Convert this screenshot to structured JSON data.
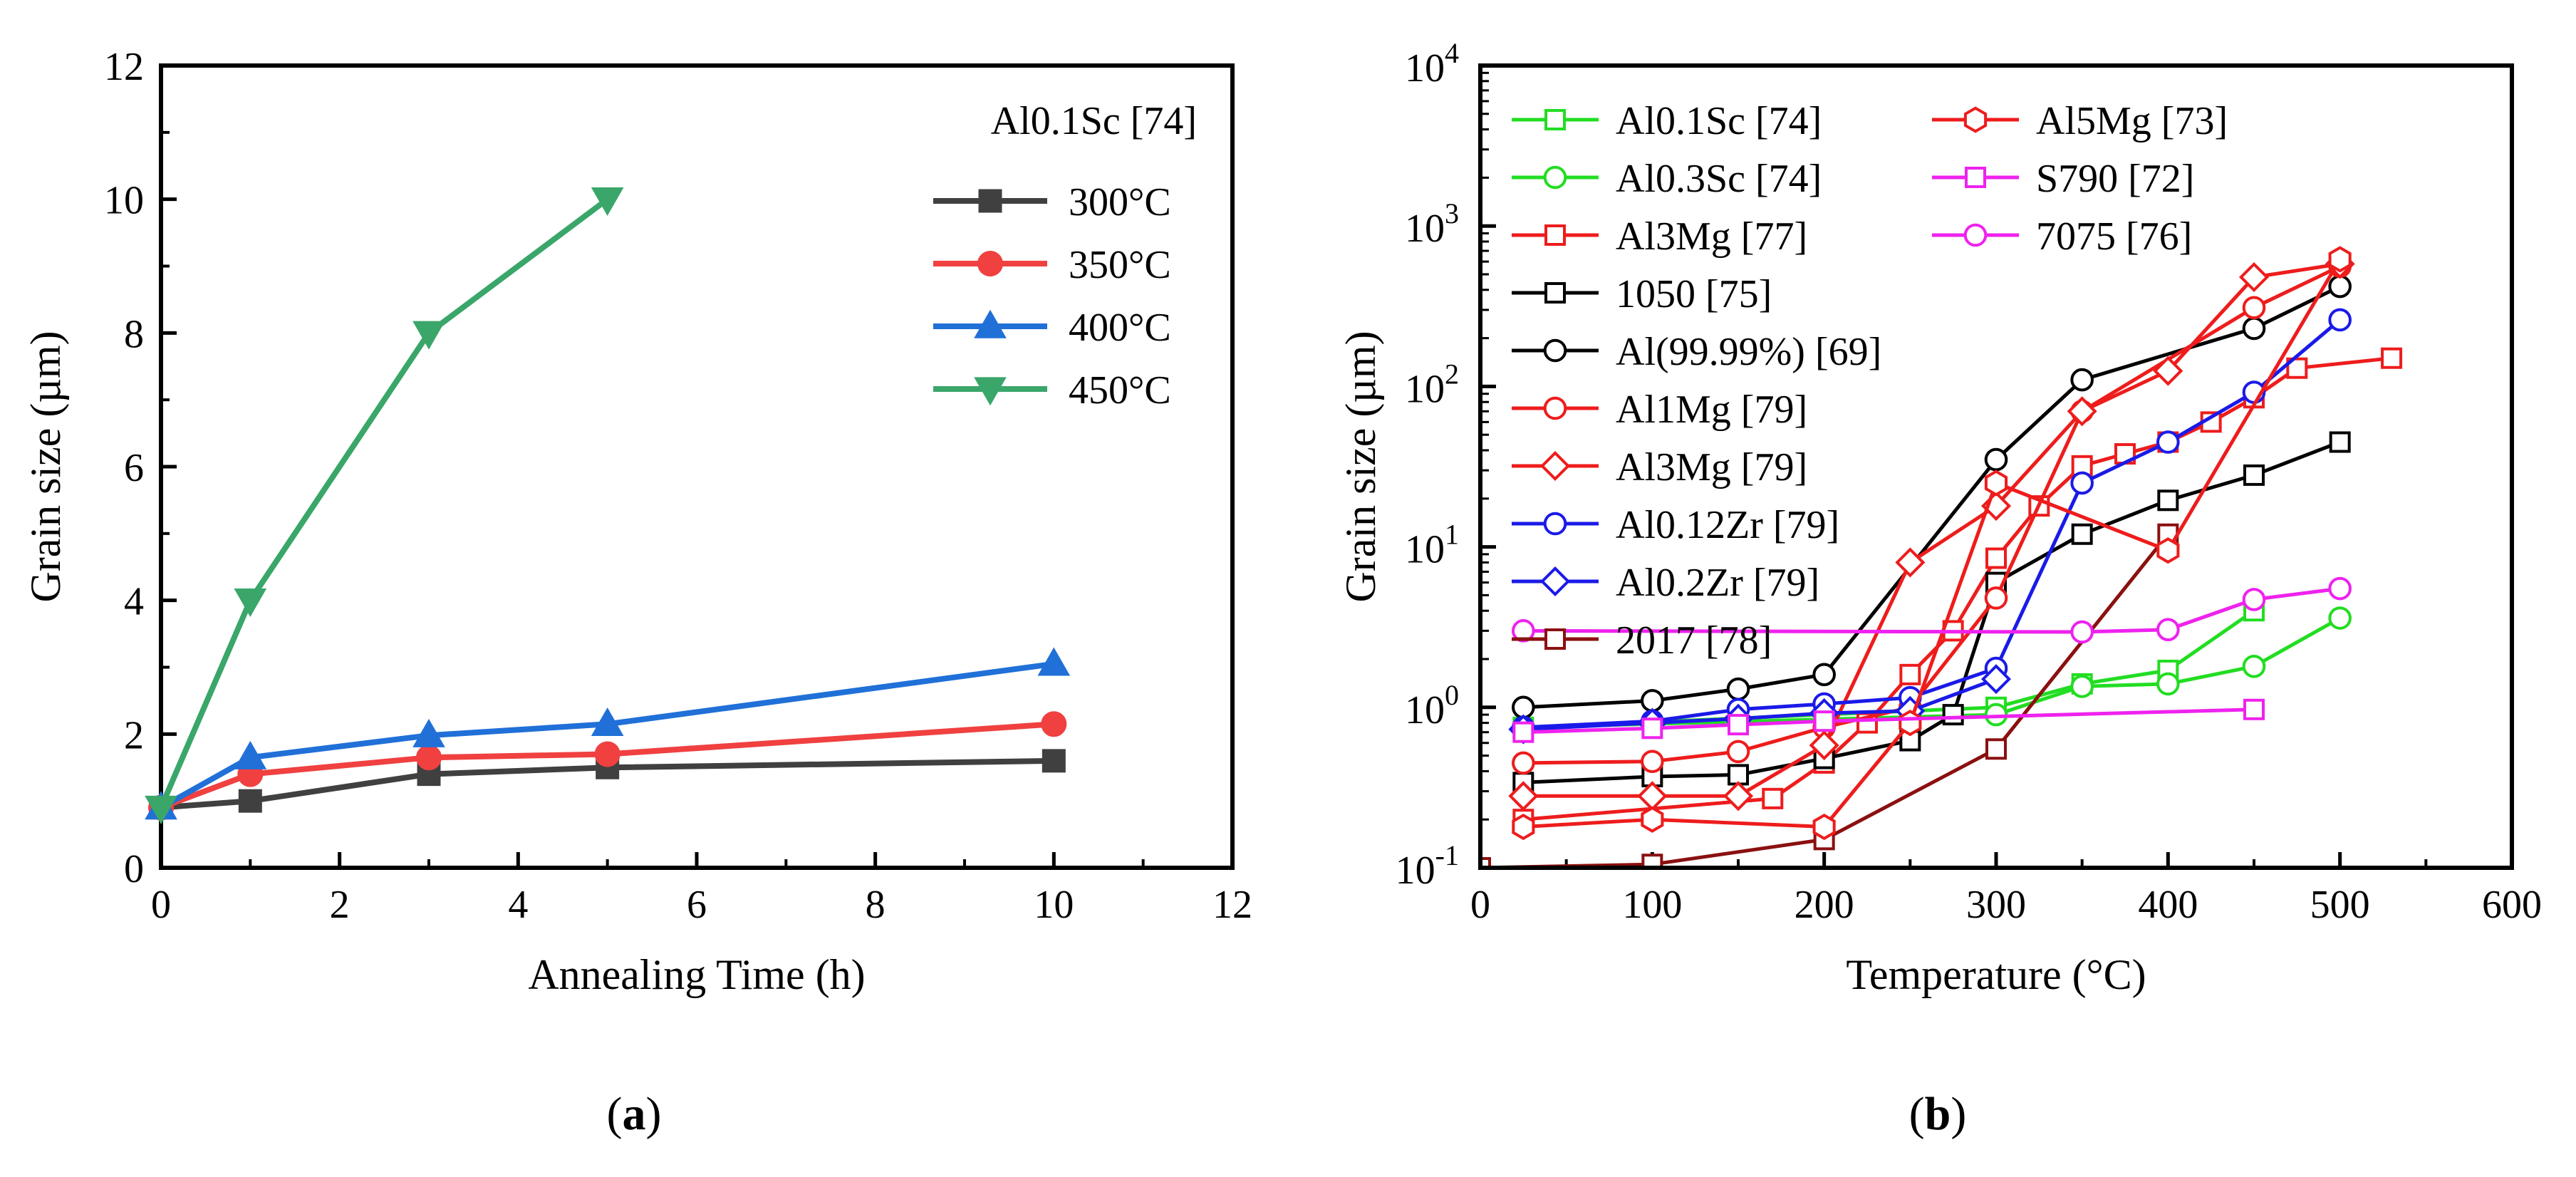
{
  "chart_data": [
    {
      "type": "line",
      "panel": "a",
      "panel_label": "a",
      "xlabel": "Annealing Time (h)",
      "ylabel": "Grain size (µm)",
      "xlim": [
        0,
        12
      ],
      "ylim": [
        0,
        12
      ],
      "xticks": [
        "0",
        "2",
        "4",
        "6",
        "8",
        "10",
        "12"
      ],
      "yticks": [
        "0",
        "2",
        "4",
        "6",
        "8",
        "10",
        "12"
      ],
      "legend_title": "Al0.1Sc [74]",
      "series": [
        {
          "name": "300°C",
          "color": "#404040",
          "marker": "square",
          "x": [
            0,
            1,
            3,
            5,
            10
          ],
          "y": [
            0.9,
            1.0,
            1.4,
            1.5,
            1.6
          ]
        },
        {
          "name": "350°C",
          "color": "#f04040",
          "marker": "circle",
          "x": [
            0,
            1,
            3,
            5,
            10
          ],
          "y": [
            0.9,
            1.4,
            1.65,
            1.7,
            2.15
          ]
        },
        {
          "name": "400°C",
          "color": "#2070d8",
          "marker": "triangle-up",
          "x": [
            0,
            1,
            3,
            5,
            10
          ],
          "y": [
            0.9,
            1.65,
            1.98,
            2.15,
            3.05
          ]
        },
        {
          "name": "450°C",
          "color": "#3aa66a",
          "marker": "triangle-down",
          "x": [
            0,
            1,
            3,
            5
          ],
          "y": [
            0.9,
            4.0,
            8.0,
            10.0
          ]
        }
      ]
    },
    {
      "type": "line",
      "panel": "b",
      "panel_label": "b",
      "xlabel": "Temperature (°C)",
      "ylabel": "Grain size (µm)",
      "yscale": "log",
      "xlim": [
        0,
        600
      ],
      "ylim": [
        0.1,
        10000
      ],
      "xticks": [
        "0",
        "100",
        "200",
        "300",
        "400",
        "500",
        "600"
      ],
      "yticks": [
        {
          "base": "10",
          "exp": "-1"
        },
        {
          "base": "10",
          "exp": "0"
        },
        {
          "base": "10",
          "exp": "1"
        },
        {
          "base": "10",
          "exp": "2"
        },
        {
          "base": "10",
          "exp": "3"
        },
        {
          "base": "10",
          "exp": "4"
        }
      ],
      "series": [
        {
          "name": "Al0.1Sc [74]",
          "color": "#22dd22",
          "marker": "square",
          "x": [
            25,
            300,
            350,
            400,
            450
          ],
          "y": [
            0.75,
            1.0,
            1.4,
            1.7,
            4.0
          ]
        },
        {
          "name": "Al0.3Sc [74]",
          "color": "#22dd22",
          "marker": "circle",
          "x": [
            25,
            300,
            350,
            400,
            450,
            500
          ],
          "y": [
            0.75,
            0.9,
            1.35,
            1.4,
            1.8,
            3.6
          ]
        },
        {
          "name": "Al3Mg [77]",
          "color": "#ee1c1c",
          "marker": "square",
          "x": [
            25,
            170,
            200,
            225,
            250,
            275,
            300,
            325,
            350,
            375,
            400,
            425,
            450,
            475,
            530
          ],
          "y": [
            0.2,
            0.27,
            0.45,
            0.8,
            1.6,
            3.0,
            8.5,
            18,
            32,
            38,
            45,
            60,
            85,
            130,
            150
          ]
        },
        {
          "name": "1050 [75]",
          "color": "#000000",
          "marker": "square",
          "x": [
            25,
            100,
            150,
            200,
            250,
            275,
            300,
            350,
            400,
            450,
            500
          ],
          "y": [
            0.34,
            0.37,
            0.38,
            0.48,
            0.62,
            0.9,
            6.0,
            12,
            19.5,
            28,
            45
          ]
        },
        {
          "name": "Al(99.99%) [69]",
          "color": "#000000",
          "marker": "circle",
          "x": [
            25,
            100,
            150,
            200,
            300,
            350,
            450,
            500
          ],
          "y": [
            1.0,
            1.1,
            1.3,
            1.6,
            35,
            110,
            230,
            420
          ]
        },
        {
          "name": "Al1Mg [79]",
          "color": "#ee1c1c",
          "marker": "circle",
          "x": [
            25,
            100,
            150,
            200,
            250,
            300,
            350,
            450,
            500
          ],
          "y": [
            0.45,
            0.46,
            0.53,
            0.75,
            1.0,
            4.8,
            70,
            310,
            560
          ]
        },
        {
          "name": "Al3Mg [79]",
          "color": "#ee1c1c",
          "marker": "diamond",
          "x": [
            25,
            100,
            150,
            200,
            250,
            300,
            350,
            400,
            450,
            500
          ],
          "y": [
            0.28,
            0.28,
            0.28,
            0.58,
            8.0,
            18,
            70,
            125,
            480,
            580
          ]
        },
        {
          "name": "Al0.12Zr [79]",
          "color": "#1a1ae8",
          "marker": "circle",
          "x": [
            25,
            100,
            150,
            200,
            250,
            300,
            350,
            400,
            450,
            500
          ],
          "y": [
            0.75,
            0.82,
            0.97,
            1.05,
            1.15,
            1.75,
            25,
            45,
            92,
            260
          ]
        },
        {
          "name": "Al0.2Zr [79]",
          "color": "#1a1ae8",
          "marker": "diamond",
          "x": [
            25,
            100,
            150,
            200,
            250,
            300
          ],
          "y": [
            0.73,
            0.8,
            0.85,
            0.92,
            0.95,
            1.5
          ]
        },
        {
          "name": "2017 [78]",
          "color": "#8b1010",
          "marker": "square",
          "x": [
            0,
            100,
            200,
            300,
            400
          ],
          "y": [
            0.1,
            0.105,
            0.15,
            0.55,
            12
          ]
        },
        {
          "name": "Al5Mg [73]",
          "color": "#ee1c1c",
          "marker": "hexagon",
          "x": [
            25,
            100,
            200,
            250,
            300,
            400,
            500
          ],
          "y": [
            0.18,
            0.2,
            0.18,
            0.8,
            25,
            9.5,
            620
          ]
        },
        {
          "name": "S790 [72]",
          "color": "#ee22ee",
          "marker": "square",
          "x": [
            25,
            100,
            150,
            200,
            450
          ],
          "y": [
            0.7,
            0.74,
            0.78,
            0.82,
            0.97
          ]
        },
        {
          "name": "7075 [76]",
          "color": "#ee22ee",
          "marker": "circle",
          "x": [
            25,
            350,
            400,
            450,
            500
          ],
          "y": [
            3.0,
            2.95,
            3.05,
            4.7,
            5.5
          ]
        }
      ]
    }
  ]
}
